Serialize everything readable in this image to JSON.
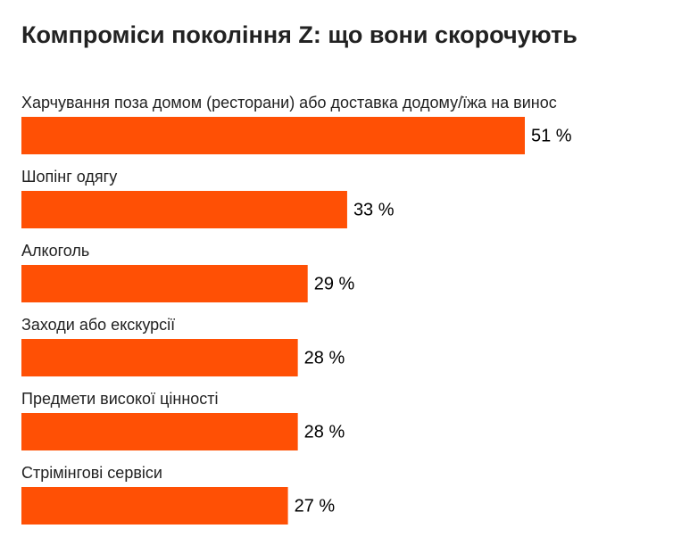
{
  "chart_data": {
    "type": "hbar",
    "title": "Компроміси покоління Z: що вони скорочують",
    "categories": [
      "Харчування поза домом (ресторани) або доставка додому/їжа на винос",
      "Шопінг одягу",
      "Алкоголь",
      "Заходи або екскурсії",
      "Предмети високої цінності",
      "Стрімінгові сервіси"
    ],
    "values": [
      51,
      33,
      29,
      28,
      28,
      27
    ],
    "value_labels": [
      "51 %",
      "33 %",
      "29 %",
      "28 %",
      "28 %",
      "27 %"
    ],
    "color": "#ff5005"
  }
}
